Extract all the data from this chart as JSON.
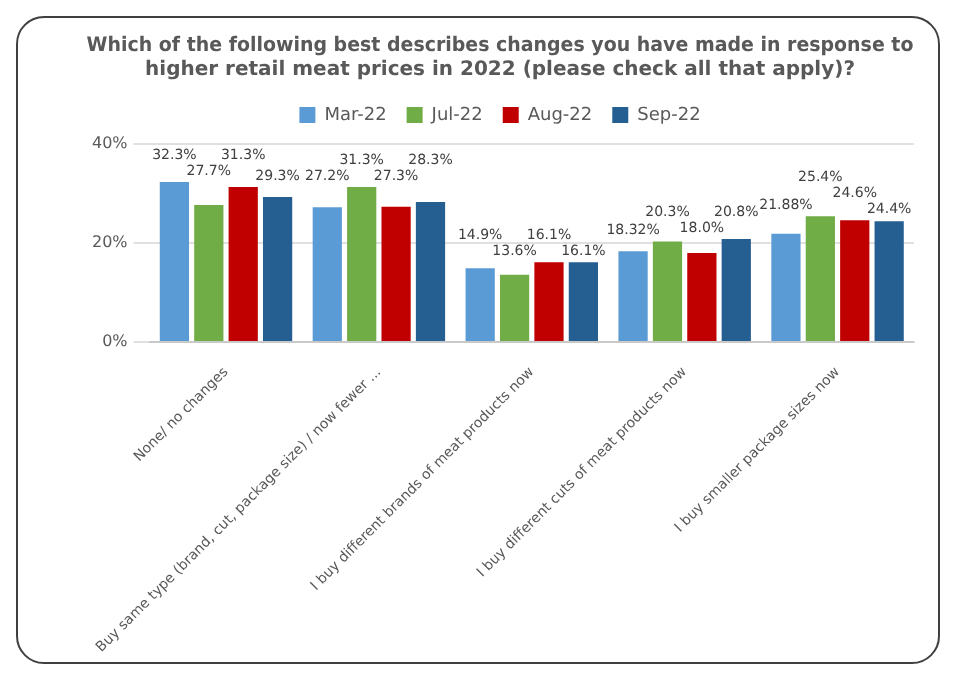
{
  "chart_data": {
    "type": "bar",
    "title": "Which of the following best describes changes you have made in response to higher retail meat prices in 2022 (please check all that apply)?",
    "categories": [
      "None/ no changes",
      "Buy same type (brand, cut, package size) / now fewer ...",
      "I buy different brands of meat products now",
      "I buy different cuts of meat products now",
      "I buy smaller package sizes now"
    ],
    "series": [
      {
        "name": "Mar-22",
        "color": "#5b9bd5",
        "values": [
          32.3,
          27.2,
          14.9,
          18.32,
          21.88
        ],
        "value_labels": [
          "32.3%",
          "27.2%",
          "14.9%",
          "18.32%",
          "21.88%"
        ]
      },
      {
        "name": "Jul-22",
        "color": "#70ad47",
        "values": [
          27.7,
          31.3,
          13.6,
          20.3,
          25.4
        ],
        "value_labels": [
          "27.7%",
          "31.3%",
          "13.6%",
          "20.3%",
          "25.4%"
        ]
      },
      {
        "name": "Aug-22",
        "color": "#c00000",
        "values": [
          31.3,
          27.3,
          16.1,
          18.0,
          24.6
        ],
        "value_labels": [
          "31.3%",
          "27.3%",
          "16.1%",
          "18.0%",
          "24.6%"
        ]
      },
      {
        "name": "Sep-22",
        "color": "#255e91",
        "values": [
          29.3,
          28.3,
          16.1,
          20.8,
          24.4
        ],
        "value_labels": [
          "29.3%",
          "28.3%",
          "16.1%",
          "20.8%",
          "24.4%"
        ]
      }
    ],
    "ylim": [
      0,
      40
    ],
    "yticks": [
      {
        "value": 0,
        "label": "0%"
      },
      {
        "value": 20,
        "label": "20%"
      },
      {
        "value": 40,
        "label": "40%"
      }
    ],
    "grid": "y",
    "legend": "top"
  }
}
